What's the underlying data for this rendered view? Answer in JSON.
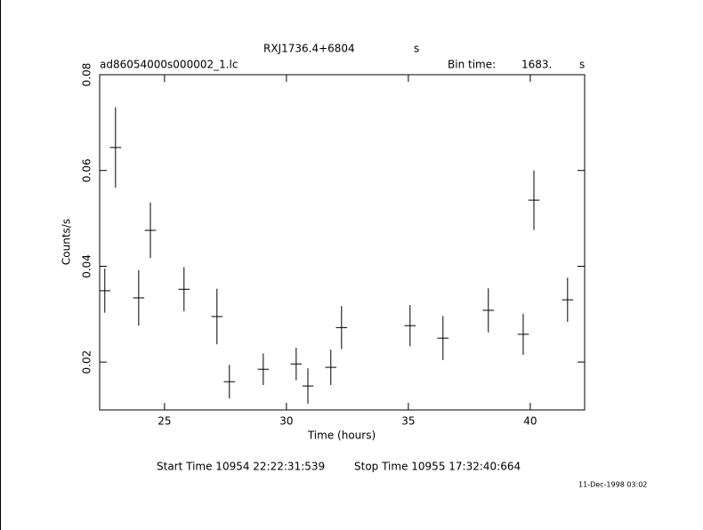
{
  "chart_data": {
    "type": "errorbar",
    "title": "RXJ1736.4+6804",
    "title_unit": "s",
    "subtitle": "ad86054000s000002_1.lc",
    "bin_time_label": "Bin time:",
    "bin_time": "1683.",
    "bin_time_unit": "s",
    "xlabel": "Time (hours)",
    "ylabel": "Counts/s",
    "start_time": "Start Time 10954 22:22:31:539",
    "stop_time": "Stop Time 10955 17:32:40:664",
    "date": "11-Dec-1998 03:02",
    "x": [
      22.55,
      22.99,
      23.94,
      24.42,
      25.8,
      27.15,
      27.66,
      29.05,
      30.4,
      30.88,
      31.82,
      32.26,
      35.07,
      36.42,
      38.28,
      39.71,
      40.15,
      41.53
    ],
    "xerr": 0.23,
    "values": [
      0.0349,
      0.0648,
      0.0334,
      0.0475,
      0.0352,
      0.0295,
      0.0159,
      0.0185,
      0.0196,
      0.015,
      0.0189,
      0.0272,
      0.0276,
      0.025,
      0.0308,
      0.0258,
      0.0538,
      0.033
    ],
    "yerr": [
      0.0046,
      0.0084,
      0.0058,
      0.0058,
      0.0046,
      0.0058,
      0.0035,
      0.0033,
      0.0034,
      0.0037,
      0.0037,
      0.0045,
      0.0043,
      0.0046,
      0.0046,
      0.0043,
      0.0062,
      0.0046
    ],
    "color": "#000000",
    "xlim": [
      22.34,
      42.23
    ],
    "ylim": [
      0.01,
      0.08
    ],
    "xticks": [
      25,
      30,
      35,
      40
    ],
    "yticks": [
      0.02,
      0.04,
      0.06,
      0.08
    ]
  }
}
